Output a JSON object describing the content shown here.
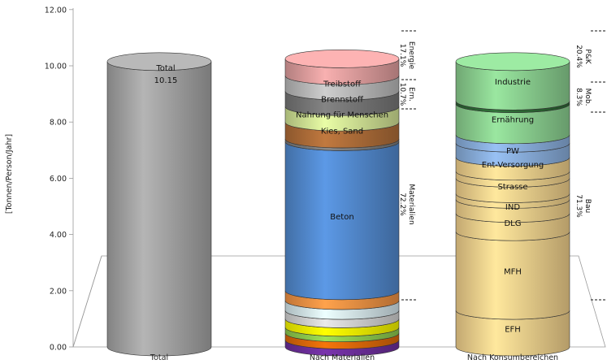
{
  "chart_data": {
    "type": "stacked-cylinder",
    "ylabel": "[Tonnen/Person/Jahr]",
    "ylim": [
      0,
      12
    ],
    "yticks": [
      "0.00",
      "2.00",
      "4.00",
      "6.00",
      "8.00",
      "10.00",
      "12.00"
    ],
    "categories": [
      "Total",
      "Nach Materialien",
      "Nach Konsumbereichen"
    ],
    "total": {
      "label": "Total",
      "value_label": "10.15",
      "value": 10.15,
      "color": "#a8a8a8"
    },
    "materials": {
      "segments": [
        {
          "label": "",
          "value": 0.25,
          "color": "#7030a0"
        },
        {
          "label": "",
          "value": 0.25,
          "color": "#e46c0a"
        },
        {
          "label": "",
          "value": 0.2,
          "color": "#92d050"
        },
        {
          "label": "",
          "value": 0.3,
          "color": "#ffff00"
        },
        {
          "label": "",
          "value": 0.3,
          "color": "#d9d9d9"
        },
        {
          "label": "",
          "value": 0.35,
          "color": "#dbeef4"
        },
        {
          "label": "",
          "value": 0.35,
          "color": "#f79646"
        },
        {
          "label": "Beton",
          "value": 5.3,
          "color": "#558ed5"
        },
        {
          "label": "",
          "value": 0.1,
          "color": "#7f7f7f"
        },
        {
          "label": "Kies, Sand",
          "value": 0.6,
          "color": "#b3703a"
        },
        {
          "label": "Nahrung für Menschen",
          "value": 0.55,
          "color": "#d8ea9a"
        },
        {
          "label": "Brennstoff",
          "value": 0.55,
          "color": "#7a7a7a"
        },
        {
          "label": "Treibstoff",
          "value": 0.55,
          "color": "#bfbfbf"
        },
        {
          "label": "",
          "value": 0.6,
          "color": "#e6a3a3"
        }
      ],
      "groups": [
        {
          "label": "Energie",
          "percent": "17.1%"
        },
        {
          "label": "Ern.",
          "percent": "10.7%"
        },
        {
          "label": "Materialien",
          "percent": "72.2%"
        }
      ]
    },
    "consumption": {
      "segments": [
        {
          "label": "EFH",
          "value": 1.3,
          "color": "#fad791"
        },
        {
          "label": "MFH",
          "value": 2.8,
          "color": "#fad791"
        },
        {
          "label": "DLG",
          "value": 0.65,
          "color": "#fad791"
        },
        {
          "label": "IND",
          "value": 0.5,
          "color": "#fad791"
        },
        {
          "label": "",
          "value": 0.2,
          "color": "#fad791"
        },
        {
          "label": "Strasse",
          "value": 0.55,
          "color": "#fad791"
        },
        {
          "label": "",
          "value": 0.25,
          "color": "#fad791"
        },
        {
          "label": "Ent-Versorgung",
          "value": 0.5,
          "color": "#fad791"
        },
        {
          "label": "PW",
          "value": 0.5,
          "color": "#8db3e2"
        },
        {
          "label": "",
          "value": 0.3,
          "color": "#8db3e2"
        },
        {
          "label": "Ernährung",
          "value": 1.1,
          "color": "#8fd694"
        },
        {
          "label": "",
          "value": 0.1,
          "color": "#2e6b36"
        },
        {
          "label": "Industrie",
          "value": 1.4,
          "color": "#8fd694"
        }
      ],
      "groups": [
        {
          "label": "P&K",
          "percent": "20.4%"
        },
        {
          "label": "Mob.",
          "percent": "8.3%"
        },
        {
          "label": "Bau",
          "percent": "71.3%"
        }
      ]
    }
  }
}
